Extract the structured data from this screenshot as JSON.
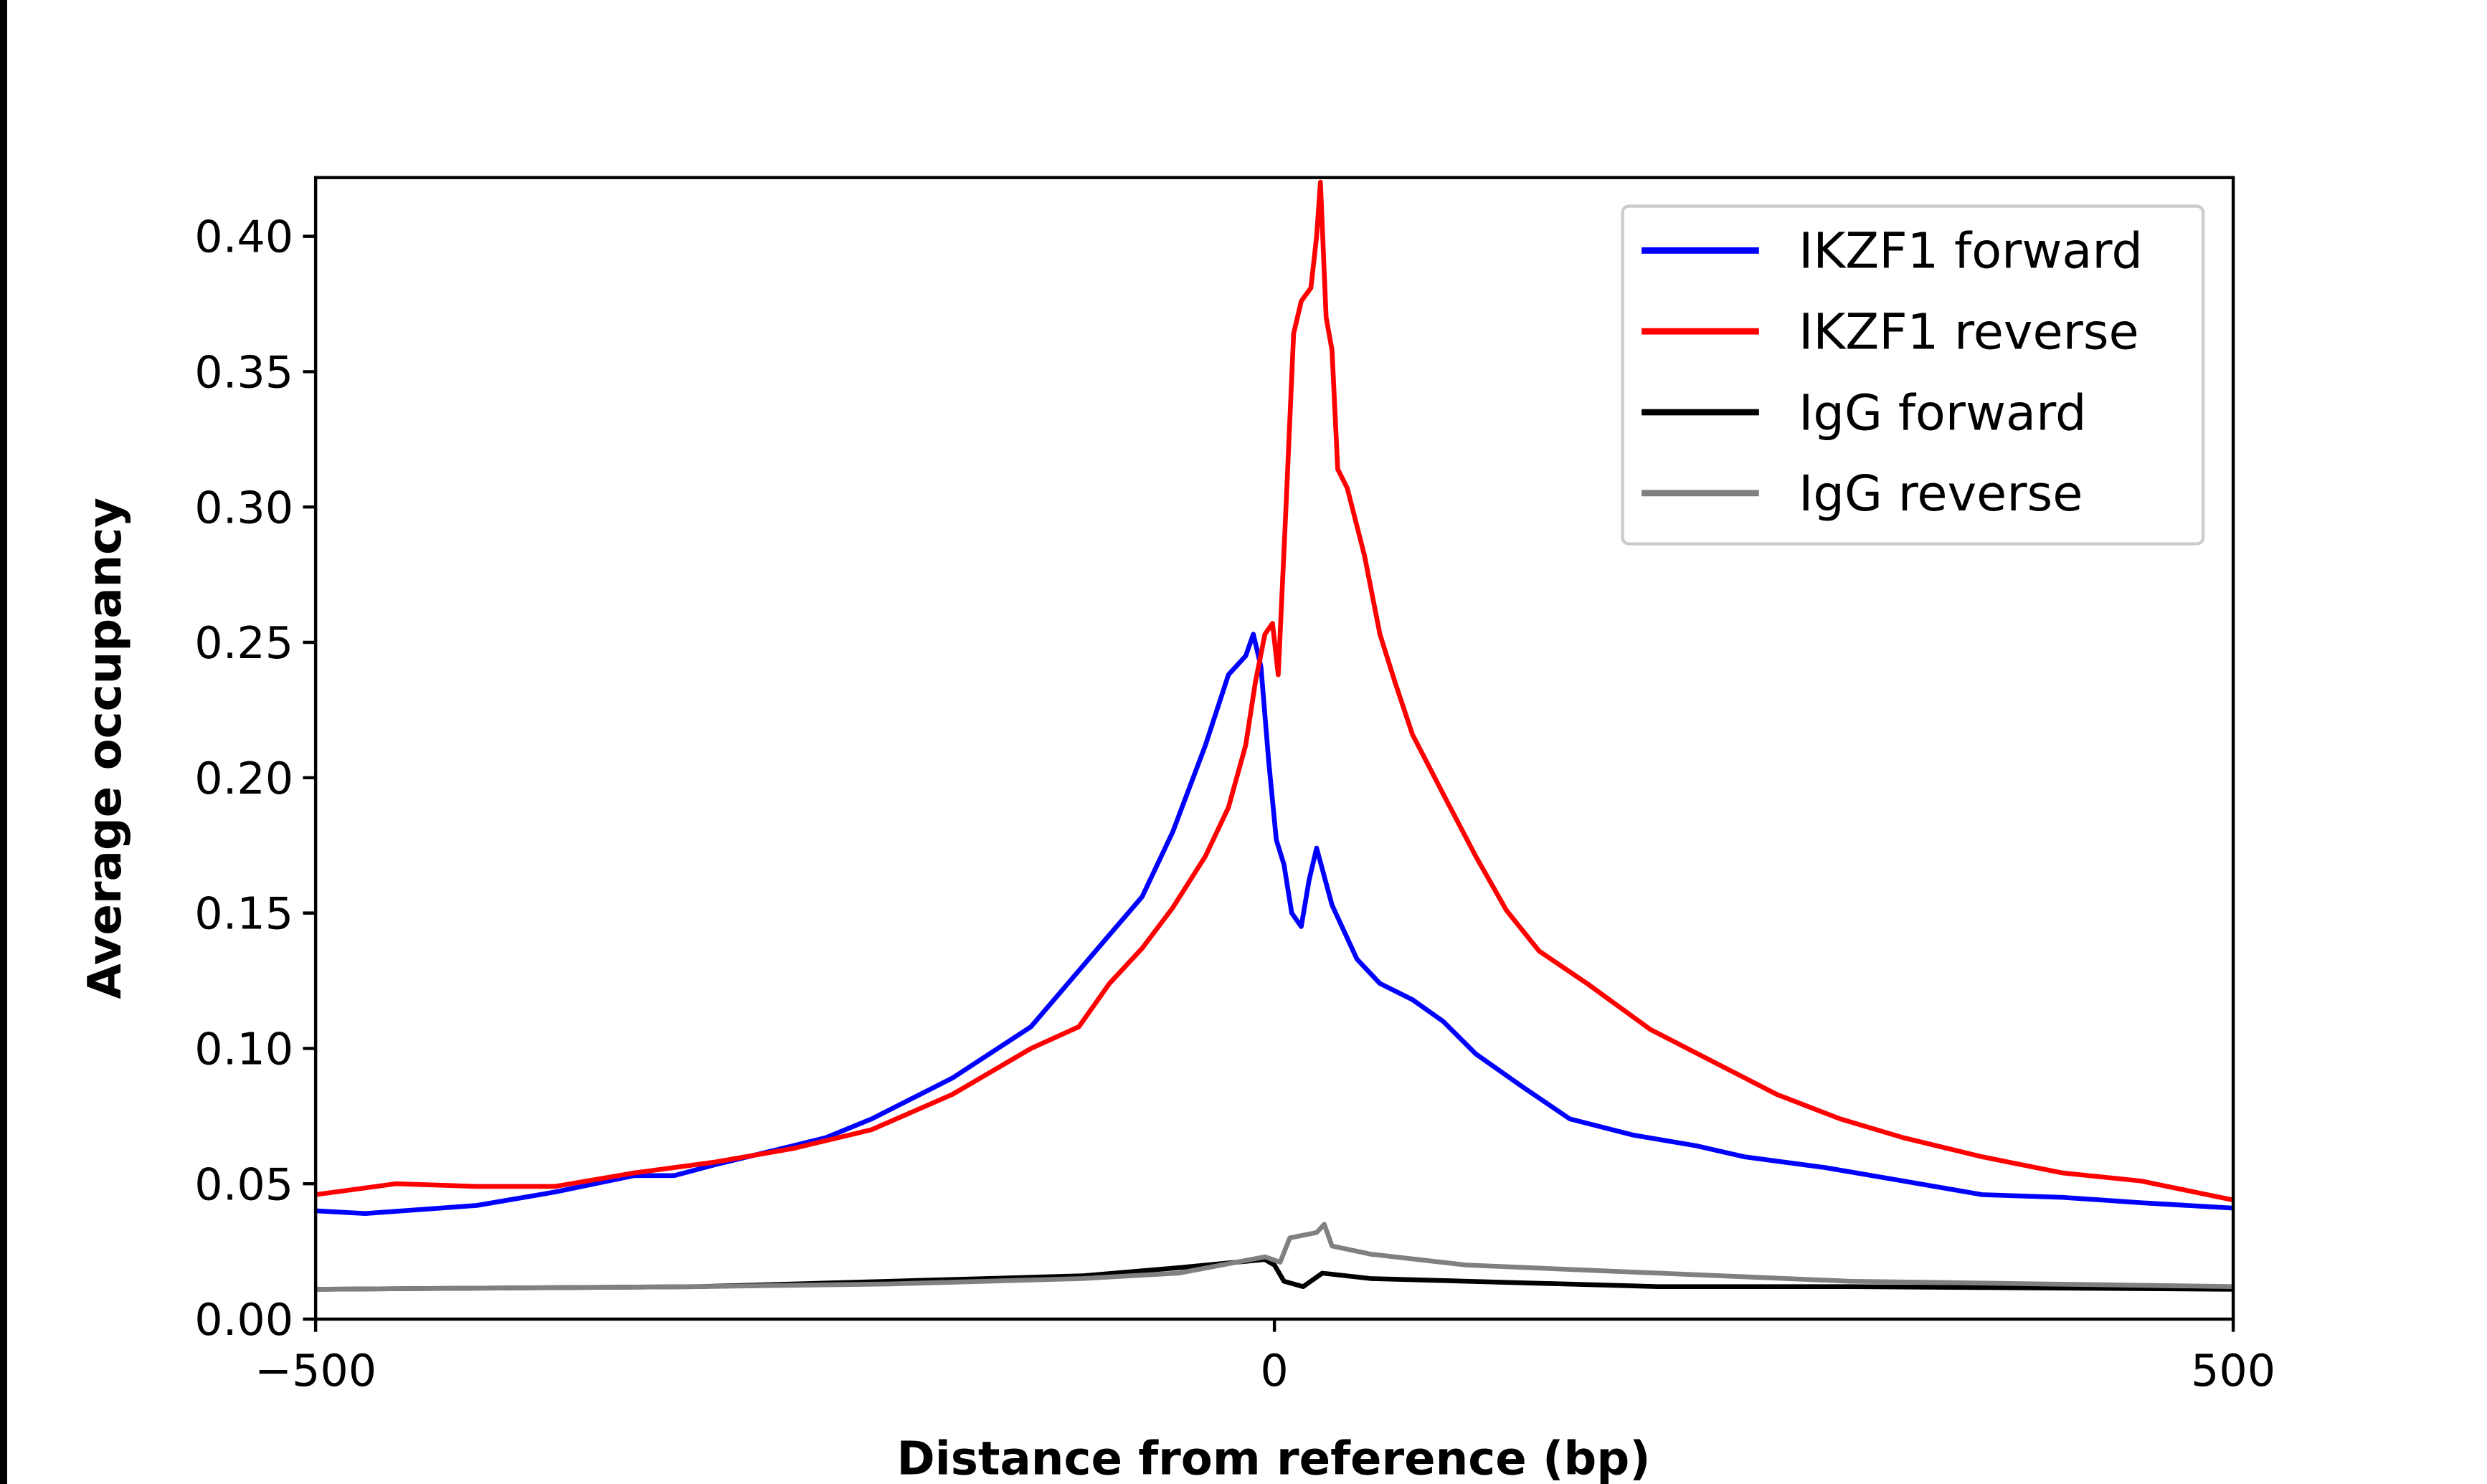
{
  "chart_data": {
    "type": "line",
    "title": "",
    "xlabel": "Distance from reference (bp)",
    "ylabel": "Average occupancy",
    "xlim": [
      -500,
      500
    ],
    "ylim": [
      0,
      0.4217
    ],
    "xticks": [
      -500,
      0,
      500
    ],
    "xtick_labels": [
      "−500",
      "0",
      "500"
    ],
    "yticks": [
      0,
      0.05,
      0.1,
      0.15,
      0.2,
      0.25,
      0.3,
      0.35,
      0.4
    ],
    "ytick_labels": [
      "0.00",
      "0.05",
      "0.10",
      "0.15",
      "0.20",
      "0.25",
      "0.30",
      "0.35",
      "0.40"
    ],
    "grid": false,
    "legend_position": "top-right",
    "series": [
      {
        "name": "IKZF1 forward",
        "color": "#0000ff",
        "x": [
          -500,
          -474,
          -416,
          -375,
          -334,
          -313,
          -292,
          -251,
          -234,
          -210,
          -168,
          -127,
          -86,
          -69,
          -53,
          -36,
          -24,
          -15,
          -11,
          -7,
          -3,
          1,
          5,
          9,
          14,
          18,
          22,
          30,
          43,
          55,
          72,
          88,
          105,
          129,
          154,
          187,
          220,
          245,
          287,
          328,
          369,
          411,
          452,
          500
        ],
        "y": [
          0.04,
          0.039,
          0.042,
          0.047,
          0.053,
          0.053,
          0.057,
          0.064,
          0.067,
          0.074,
          0.089,
          0.108,
          0.142,
          0.156,
          0.18,
          0.212,
          0.238,
          0.245,
          0.253,
          0.241,
          0.206,
          0.177,
          0.168,
          0.15,
          0.145,
          0.162,
          0.174,
          0.153,
          0.133,
          0.124,
          0.118,
          0.11,
          0.098,
          0.086,
          0.074,
          0.068,
          0.064,
          0.06,
          0.056,
          0.051,
          0.046,
          0.045,
          0.043,
          0.041
        ]
      },
      {
        "name": "IKZF1 reverse",
        "color": "#ff0000",
        "x": [
          -500,
          -458,
          -416,
          -375,
          -334,
          -292,
          -251,
          -210,
          -168,
          -127,
          -102,
          -86,
          -69,
          -53,
          -36,
          -24,
          -15,
          -10,
          -5,
          -1,
          2,
          6,
          10,
          14,
          19,
          22,
          24,
          27,
          30,
          33,
          38,
          47,
          55,
          63,
          72,
          88,
          105,
          121,
          138,
          163,
          196,
          229,
          262,
          295,
          328,
          369,
          411,
          452,
          500
        ],
        "y": [
          0.046,
          0.05,
          0.049,
          0.049,
          0.054,
          0.058,
          0.063,
          0.07,
          0.083,
          0.1,
          0.108,
          0.124,
          0.137,
          0.152,
          0.171,
          0.189,
          0.212,
          0.235,
          0.253,
          0.257,
          0.238,
          0.3,
          0.364,
          0.376,
          0.381,
          0.4,
          0.42,
          0.37,
          0.358,
          0.314,
          0.307,
          0.282,
          0.253,
          0.235,
          0.216,
          0.194,
          0.171,
          0.151,
          0.136,
          0.124,
          0.107,
          0.095,
          0.083,
          0.074,
          0.067,
          0.06,
          0.054,
          0.051,
          0.044
        ]
      },
      {
        "name": "IgG forward",
        "color": "#000000",
        "x": [
          -500,
          -300,
          -200,
          -100,
          -50,
          -5,
          0,
          5,
          15,
          25,
          50,
          100,
          200,
          300,
          500
        ],
        "y": [
          0.011,
          0.012,
          0.014,
          0.016,
          0.019,
          0.022,
          0.02,
          0.014,
          0.012,
          0.017,
          0.015,
          0.014,
          0.012,
          0.012,
          0.011
        ]
      },
      {
        "name": "IgG reverse",
        "color": "#808080",
        "x": [
          -500,
          -300,
          -200,
          -100,
          -50,
          -5,
          3,
          8,
          15,
          22,
          26,
          30,
          50,
          100,
          200,
          300,
          400,
          500
        ],
        "y": [
          0.011,
          0.012,
          0.013,
          0.015,
          0.017,
          0.023,
          0.021,
          0.03,
          0.031,
          0.032,
          0.035,
          0.027,
          0.024,
          0.02,
          0.017,
          0.014,
          0.013,
          0.012
        ]
      }
    ]
  }
}
